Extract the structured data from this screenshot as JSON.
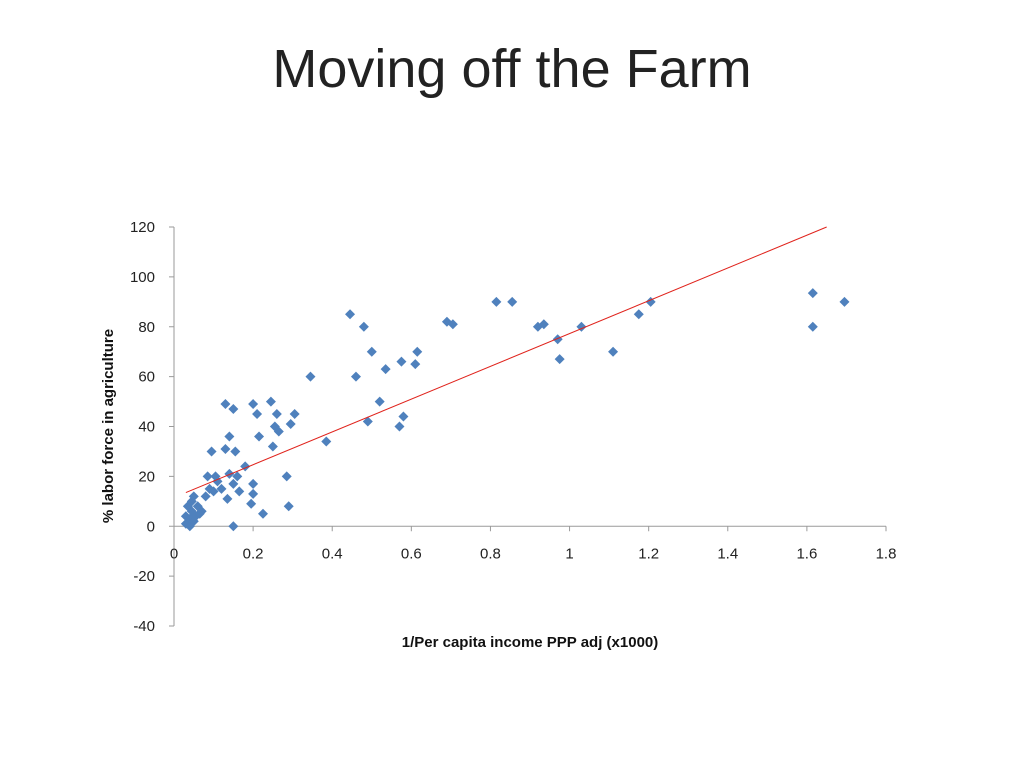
{
  "slide": {
    "title": "Moving off the Farm"
  },
  "chart_data": {
    "type": "scatter",
    "xlabel": "1/Per capita income PPP adj (x1000)",
    "ylabel": "% labor force in agriculture",
    "xlim": [
      0,
      1.8
    ],
    "ylim": [
      -40,
      120
    ],
    "x_ticks": [
      "0",
      "0.2",
      "0.4",
      "0.6",
      "0.8",
      "1",
      "1.2",
      "1.4",
      "1.6",
      "1.8"
    ],
    "y_ticks": [
      "-40",
      "-20",
      "0",
      "20",
      "40",
      "60",
      "80",
      "100",
      "120"
    ],
    "grid": false,
    "legend": "none",
    "marker": "diamond",
    "colors": {
      "points": "#4f81bd",
      "trendline": "#e0231c",
      "axis": "#9a9a9a"
    },
    "trendline": {
      "type": "linear",
      "x": [
        0.03,
        1.65
      ],
      "y": [
        13.5,
        120
      ]
    },
    "series": [
      {
        "points": [
          [
            0.03,
            1
          ],
          [
            0.03,
            4
          ],
          [
            0.035,
            8
          ],
          [
            0.04,
            0
          ],
          [
            0.04,
            3
          ],
          [
            0.045,
            6
          ],
          [
            0.045,
            10
          ],
          [
            0.05,
            2
          ],
          [
            0.05,
            12
          ],
          [
            0.055,
            4
          ],
          [
            0.06,
            8
          ],
          [
            0.065,
            5
          ],
          [
            0.07,
            6
          ],
          [
            0.08,
            12
          ],
          [
            0.085,
            20
          ],
          [
            0.09,
            15
          ],
          [
            0.095,
            30
          ],
          [
            0.1,
            14
          ],
          [
            0.105,
            20
          ],
          [
            0.11,
            18
          ],
          [
            0.12,
            15
          ],
          [
            0.13,
            31
          ],
          [
            0.135,
            11
          ],
          [
            0.14,
            36
          ],
          [
            0.15,
            17
          ],
          [
            0.15,
            47
          ],
          [
            0.13,
            49
          ],
          [
            0.14,
            21
          ],
          [
            0.15,
            0
          ],
          [
            0.155,
            30
          ],
          [
            0.16,
            20
          ],
          [
            0.165,
            14
          ],
          [
            0.18,
            24
          ],
          [
            0.195,
            9
          ],
          [
            0.2,
            13
          ],
          [
            0.2,
            17
          ],
          [
            0.2,
            49
          ],
          [
            0.21,
            45
          ],
          [
            0.215,
            36
          ],
          [
            0.225,
            5
          ],
          [
            0.245,
            50
          ],
          [
            0.25,
            32
          ],
          [
            0.255,
            40
          ],
          [
            0.26,
            45
          ],
          [
            0.265,
            38
          ],
          [
            0.285,
            20
          ],
          [
            0.29,
            8
          ],
          [
            0.295,
            41
          ],
          [
            0.305,
            45
          ],
          [
            0.345,
            60
          ],
          [
            0.385,
            34
          ],
          [
            0.445,
            85
          ],
          [
            0.46,
            60
          ],
          [
            0.48,
            80
          ],
          [
            0.49,
            42
          ],
          [
            0.5,
            70
          ],
          [
            0.52,
            50
          ],
          [
            0.535,
            63
          ],
          [
            0.57,
            40
          ],
          [
            0.575,
            66
          ],
          [
            0.58,
            44
          ],
          [
            0.61,
            65
          ],
          [
            0.615,
            70
          ],
          [
            0.69,
            82
          ],
          [
            0.705,
            81
          ],
          [
            0.815,
            90
          ],
          [
            0.855,
            90
          ],
          [
            0.92,
            80
          ],
          [
            0.935,
            81
          ],
          [
            0.97,
            75
          ],
          [
            0.975,
            67
          ],
          [
            1.03,
            80
          ],
          [
            1.11,
            70
          ],
          [
            1.175,
            85
          ],
          [
            1.205,
            90
          ],
          [
            1.615,
            93.5
          ],
          [
            1.615,
            80
          ],
          [
            1.695,
            90
          ]
        ]
      }
    ]
  }
}
